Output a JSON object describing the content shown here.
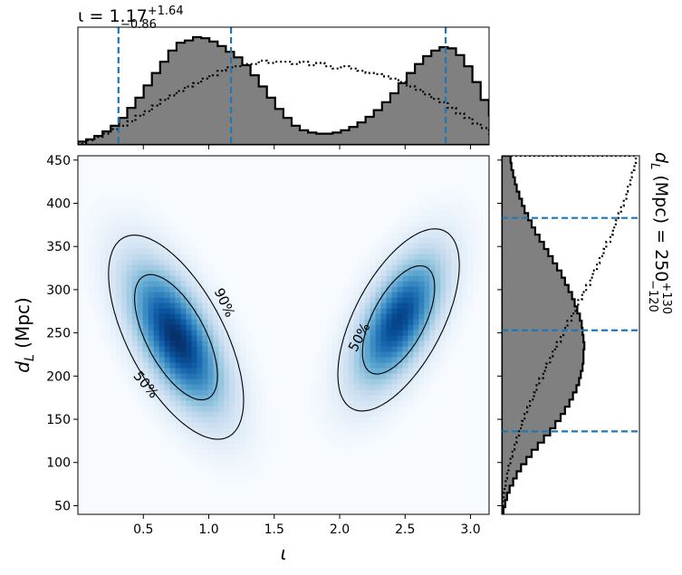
{
  "chart_data": {
    "type": "heatmap",
    "title_iota": {
      "symbol": "ι",
      "median": "1.17",
      "plus": "+1.64",
      "minus": "−0.86"
    },
    "title_dl": {
      "symbol": "d",
      "subscript": "L",
      "units": "(Mpc)",
      "median": "250",
      "plus": "+130",
      "minus": "−120"
    },
    "xlabel": "ι",
    "ylabel": {
      "symbol": "d",
      "subscript": "L",
      "units": "(Mpc)"
    },
    "xlim": [
      0.0,
      3.1416
    ],
    "ylim": [
      40,
      455
    ],
    "xticks": [
      0.5,
      1.0,
      1.5,
      2.0,
      2.5,
      3.0
    ],
    "xtick_labels": [
      "0.5",
      "1.0",
      "1.5",
      "2.0",
      "2.5",
      "3.0"
    ],
    "yticks": [
      50,
      100,
      150,
      200,
      250,
      300,
      350,
      400,
      450
    ],
    "ytick_labels": [
      "50",
      "100",
      "150",
      "200",
      "250",
      "300",
      "350",
      "400",
      "450"
    ],
    "colormap": "Blues",
    "colors": {
      "hist_fill": "#808080",
      "hist_edge": "#000000",
      "quantile_line": "#1f77b4",
      "contour": "#000000"
    },
    "contour_levels": [
      "50%",
      "90%"
    ],
    "density_modes": [
      {
        "x": 0.75,
        "y": 245,
        "sx": 0.24,
        "sy": 55,
        "rho": -0.62,
        "weight": 1.0
      },
      {
        "x": 2.45,
        "y": 265,
        "sx": 0.22,
        "sy": 50,
        "rho": 0.6,
        "weight": 0.92
      }
    ],
    "iota_quantiles": [
      0.31,
      1.17,
      2.81
    ],
    "dl_quantiles": [
      136,
      253,
      383
    ],
    "iota_hist": {
      "bin_edges_start": 0.0,
      "bin_width": 0.0628,
      "posterior": [
        0.03,
        0.05,
        0.08,
        0.12,
        0.17,
        0.24,
        0.33,
        0.42,
        0.53,
        0.64,
        0.74,
        0.84,
        0.91,
        0.93,
        0.96,
        0.95,
        0.92,
        0.88,
        0.83,
        0.78,
        0.71,
        0.62,
        0.52,
        0.42,
        0.32,
        0.24,
        0.17,
        0.13,
        0.11,
        0.1,
        0.1,
        0.11,
        0.13,
        0.16,
        0.2,
        0.25,
        0.31,
        0.38,
        0.46,
        0.55,
        0.64,
        0.72,
        0.79,
        0.84,
        0.87,
        0.86,
        0.8,
        0.7,
        0.56,
        0.4,
        0.26
      ],
      "prior": [
        0.01,
        0.04,
        0.07,
        0.1,
        0.14,
        0.17,
        0.21,
        0.26,
        0.3,
        0.35,
        0.4,
        0.44,
        0.48,
        0.52,
        0.55,
        0.59,
        0.62,
        0.66,
        0.69,
        0.7,
        0.72,
        0.72,
        0.75,
        0.73,
        0.74,
        0.74,
        0.72,
        0.74,
        0.71,
        0.73,
        0.7,
        0.68,
        0.7,
        0.68,
        0.66,
        0.64,
        0.63,
        0.61,
        0.59,
        0.56,
        0.52,
        0.49,
        0.45,
        0.41,
        0.38,
        0.33,
        0.28,
        0.24,
        0.19,
        0.15,
        0.1
      ]
    },
    "dl_hist": {
      "bin_edges_start": 40,
      "bin_width": 8.3,
      "posterior": [
        0.02,
        0.04,
        0.06,
        0.09,
        0.13,
        0.17,
        0.22,
        0.28,
        0.34,
        0.41,
        0.48,
        0.55,
        0.61,
        0.67,
        0.72,
        0.77,
        0.81,
        0.85,
        0.88,
        0.9,
        0.92,
        0.93,
        0.93,
        0.94,
        0.93,
        0.92,
        0.91,
        0.89,
        0.86,
        0.83,
        0.8,
        0.76,
        0.72,
        0.68,
        0.63,
        0.58,
        0.53,
        0.48,
        0.43,
        0.38,
        0.34,
        0.3,
        0.26,
        0.23,
        0.2,
        0.17,
        0.15,
        0.13,
        0.11,
        0.1
      ],
      "prior": [
        0.005,
        0.01,
        0.015,
        0.02,
        0.03,
        0.04,
        0.05,
        0.065,
        0.08,
        0.095,
        0.11,
        0.13,
        0.15,
        0.17,
        0.19,
        0.21,
        0.24,
        0.26,
        0.28,
        0.31,
        0.33,
        0.36,
        0.38,
        0.41,
        0.44,
        0.46,
        0.49,
        0.52,
        0.55,
        0.57,
        0.6,
        0.63,
        0.66,
        0.68,
        0.71,
        0.73,
        0.76,
        0.78,
        0.81,
        0.83,
        0.85,
        0.87,
        0.89,
        0.91,
        0.93,
        0.94,
        0.96,
        0.97,
        0.99,
        1.0
      ]
    }
  }
}
